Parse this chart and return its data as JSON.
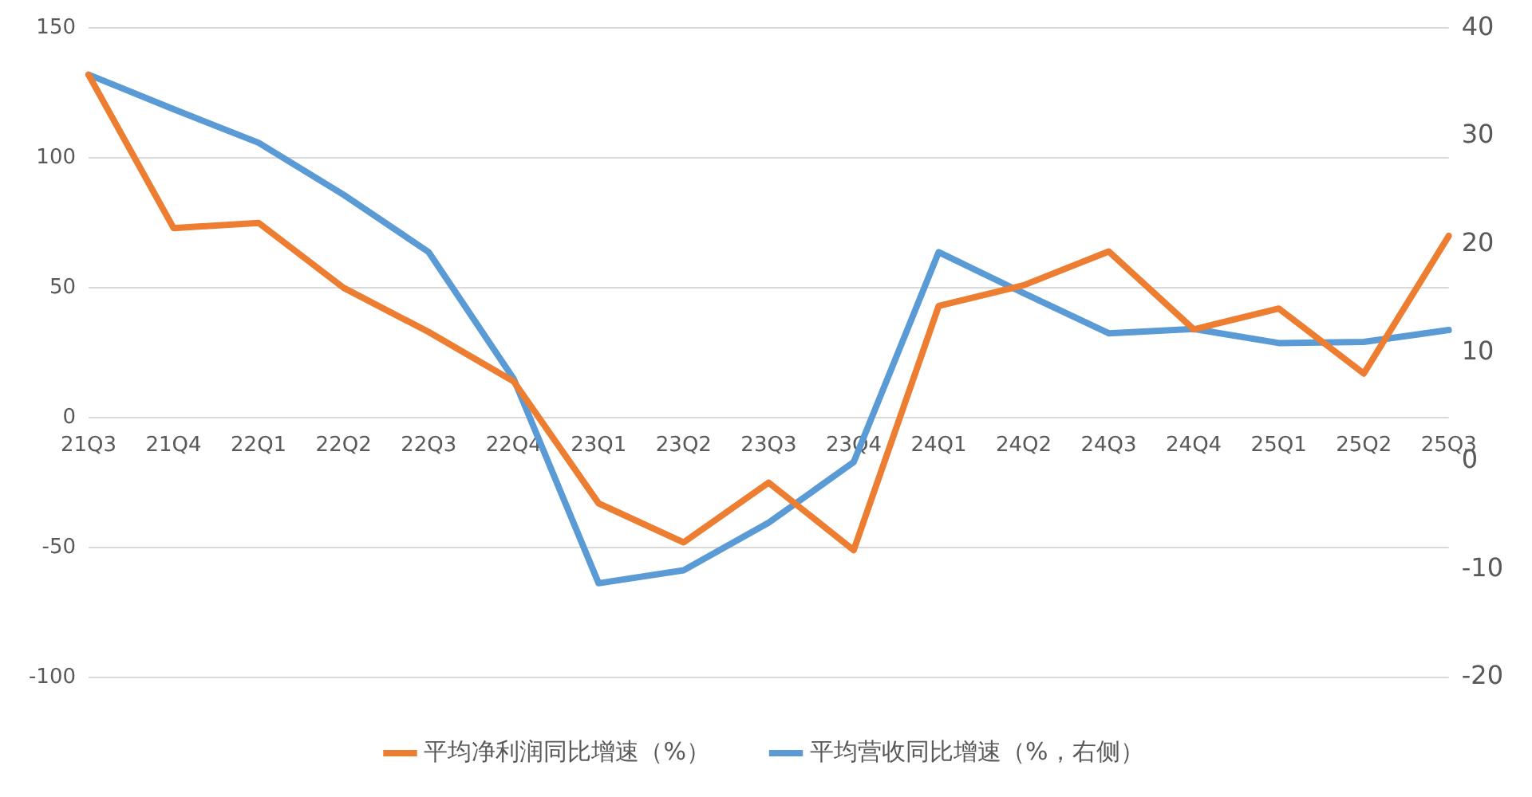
{
  "chart_data": {
    "type": "line",
    "categories": [
      "21Q3",
      "21Q4",
      "22Q1",
      "22Q2",
      "22Q3",
      "22Q4",
      "23Q1",
      "23Q2",
      "23Q3",
      "23Q4",
      "24Q1",
      "24Q2",
      "24Q3",
      "24Q4",
      "25Q1",
      "25Q2",
      "25Q3"
    ],
    "series": [
      {
        "name": "平均净利润同比增速（%）",
        "color": "#ed7d31",
        "values": [
          132,
          73,
          75,
          50,
          33,
          14,
          -33,
          -48,
          -25,
          -51,
          43,
          51,
          64,
          34,
          42,
          17,
          70
        ]
      },
      {
        "name": "平均营收同比增速（%，右侧）",
        "color": "#5b9bd5",
        "axis": "y2",
        "values": [
          35.7,
          32.5,
          29.4,
          24.6,
          19.3,
          7.6,
          -11.3,
          -10.1,
          -5.7,
          -0.1,
          19.3,
          15.5,
          11.8,
          12.2,
          10.9,
          11.0,
          12.1
        ]
      }
    ],
    "ylim": [
      -100,
      150
    ],
    "yticks": [
      -100,
      -50,
      0,
      50,
      100,
      150
    ],
    "y2lim": [
      -20,
      40
    ],
    "y2ticks": [
      -20,
      -10,
      0,
      10,
      20,
      30,
      40
    ],
    "grid": "y",
    "legend": "bottom"
  }
}
